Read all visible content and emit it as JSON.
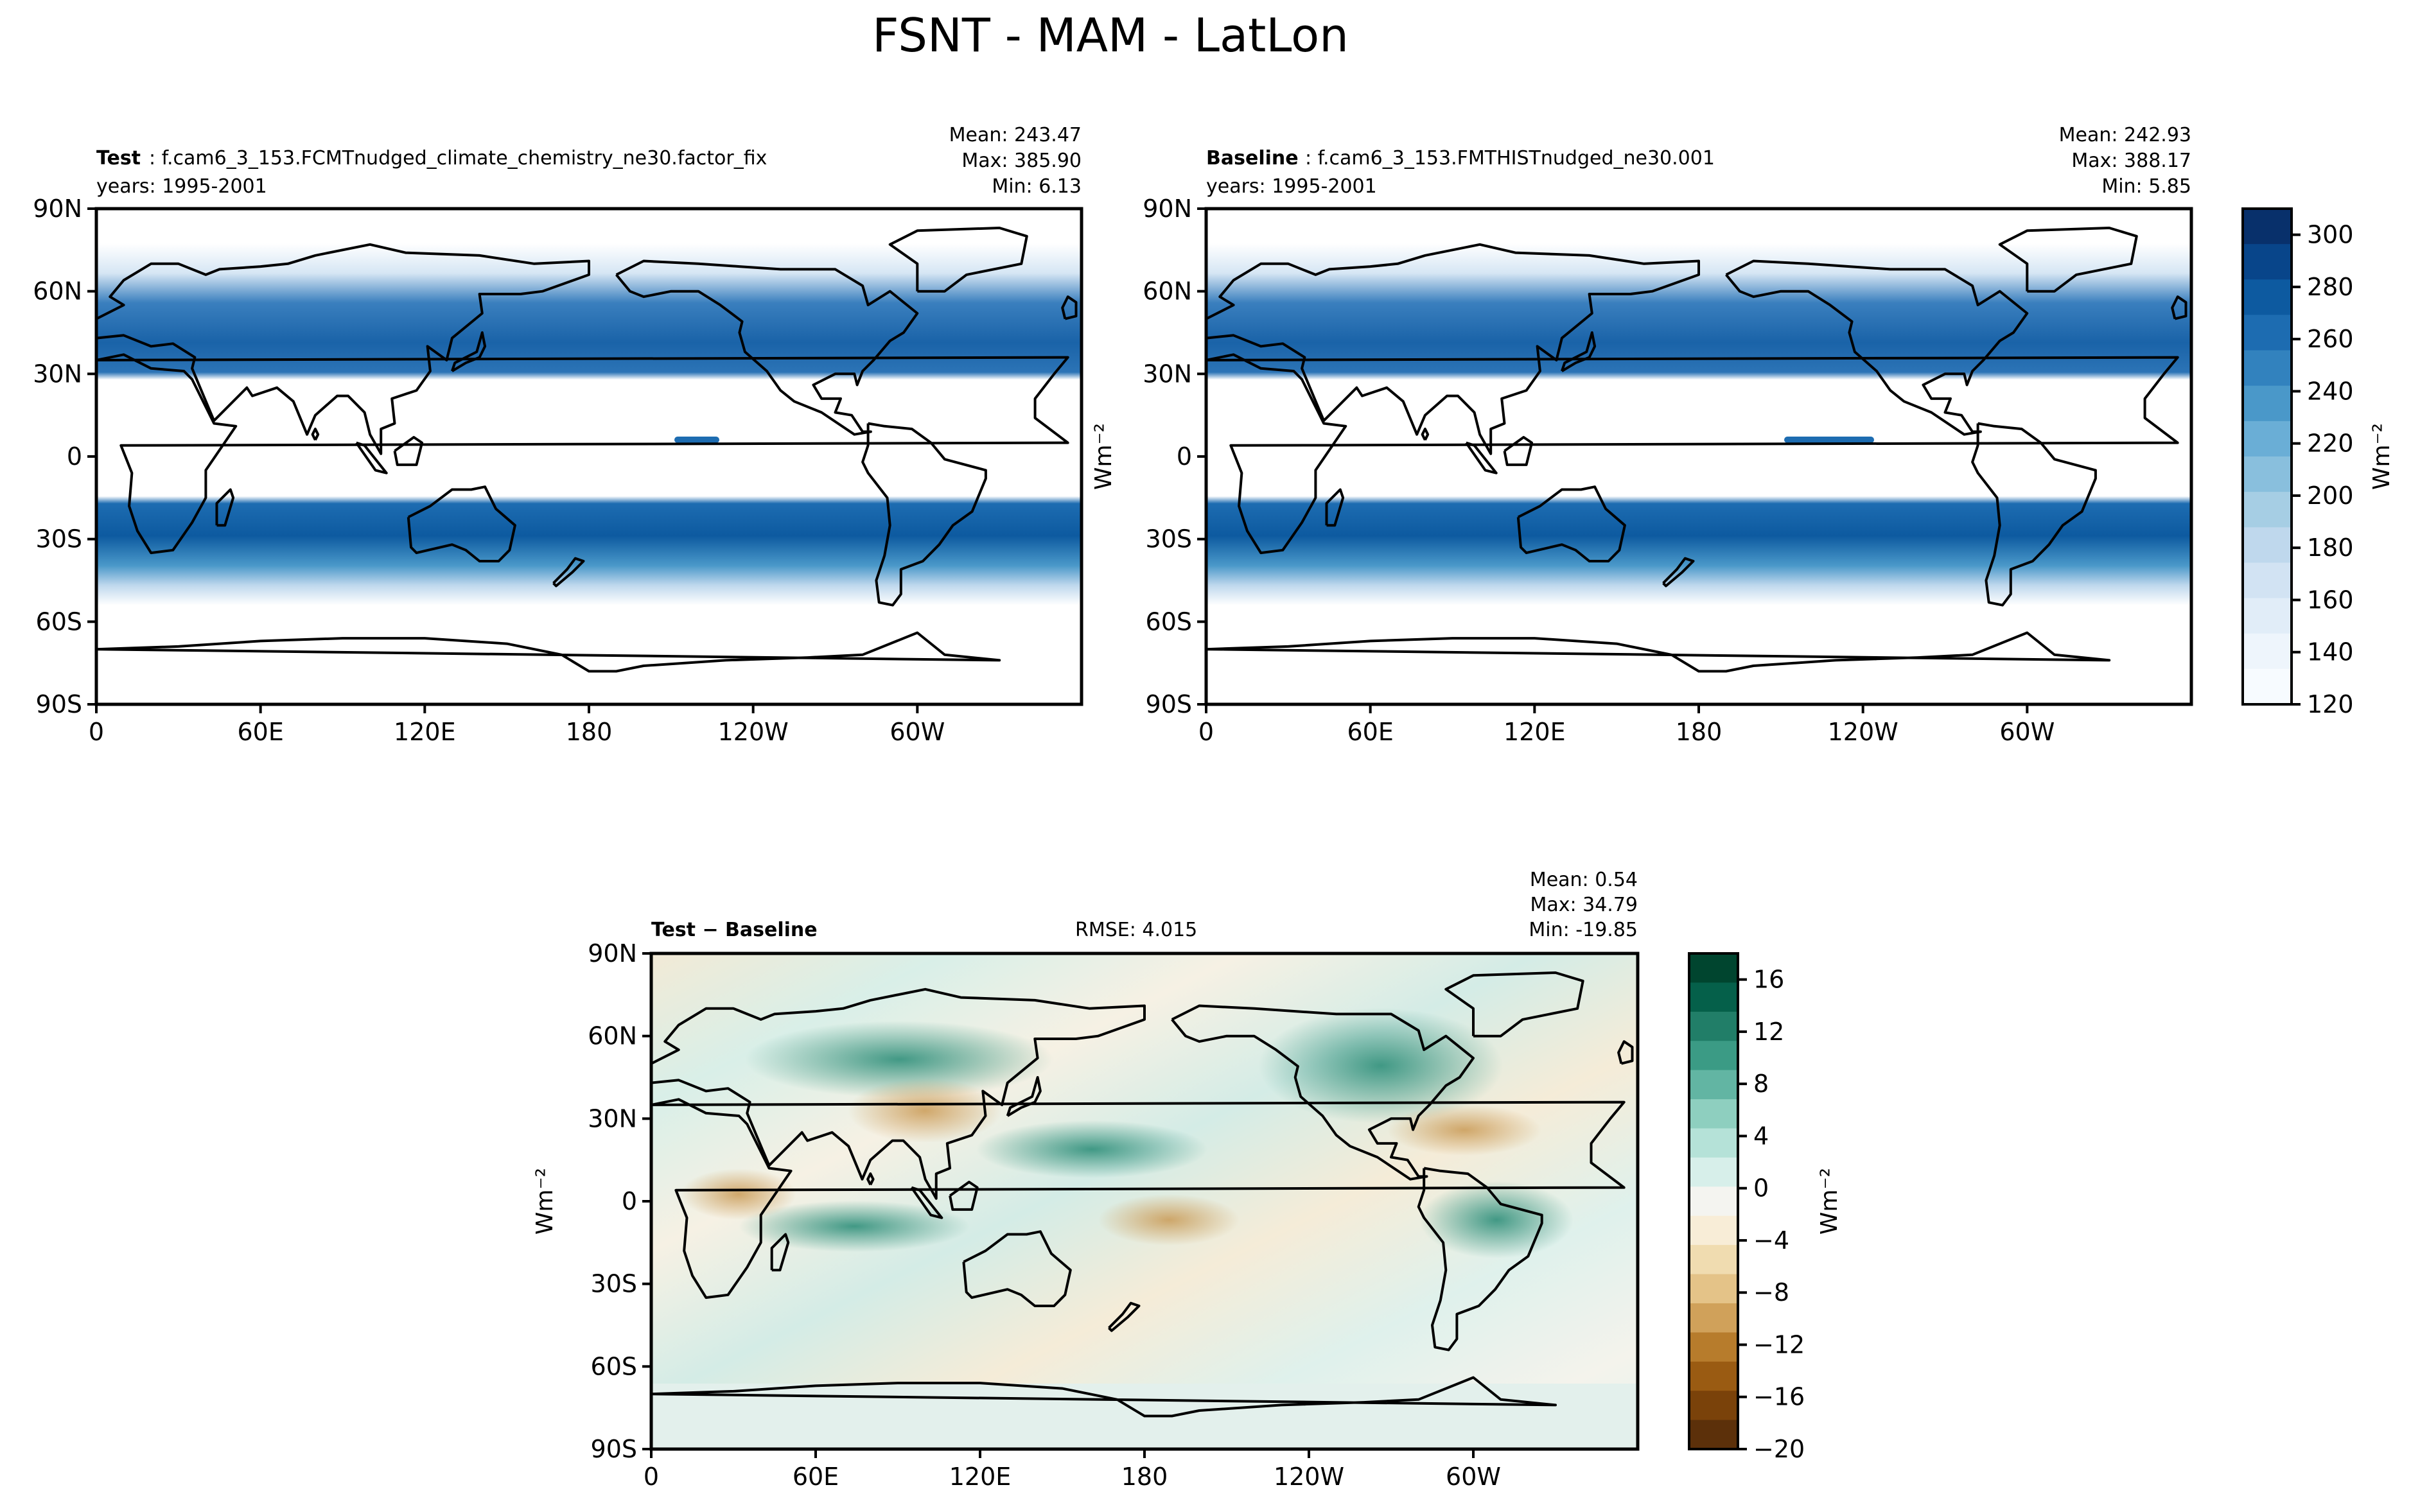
{
  "figure": {
    "title": "FSNT - MAM - LatLon"
  },
  "panels": [
    {
      "id": "test",
      "label_bold": "Test",
      "label_rest": ": f.cam6_3_153.FCMTnudged_climate_chemistry_ne30.factor_fix",
      "years": "years: 1995-2001",
      "stats": {
        "mean": "Mean: 243.47",
        "max": "Max: 385.90",
        "min": "Min:  6.13"
      }
    },
    {
      "id": "baseline",
      "label_bold": "Baseline",
      "label_rest": ": f.cam6_3_153.FMTHISTnudged_ne30.001",
      "years": "years: 1995-2001",
      "stats": {
        "mean": "Mean: 242.93",
        "max": "Max: 388.17",
        "min": "Min:  5.85"
      }
    },
    {
      "id": "diff",
      "label_bold": "Test − Baseline",
      "rmse": "RMSE: 4.015",
      "stats": {
        "mean": "Mean:  0.54",
        "max": "Max: 34.79",
        "min": "Min: -19.85"
      }
    }
  ],
  "axes": {
    "x_ticks": [
      "0",
      "60E",
      "120E",
      "180",
      "120W",
      "60W"
    ],
    "y_ticks": [
      "90N",
      "60N",
      "30N",
      "0",
      "30S",
      "60S",
      "90S"
    ]
  },
  "colorbars": {
    "main": {
      "label": "Wm⁻²",
      "ticks": [
        "300",
        "280",
        "260",
        "240",
        "220",
        "200",
        "180",
        "160",
        "140",
        "120"
      ],
      "colors": [
        "#08306b",
        "#08458a",
        "#0d5aa0",
        "#1d6cb1",
        "#3282be",
        "#4a98c9",
        "#6aaed6",
        "#89bfdd",
        "#a6cee4",
        "#bfd8ed",
        "#d2e3f3",
        "#e1edf8",
        "#eef5fc",
        "#f7fbff"
      ]
    },
    "diff": {
      "label": "Wm⁻²",
      "ticks": [
        "16",
        "12",
        "8",
        "4",
        "0",
        "−4",
        "−8",
        "−12",
        "−16",
        "−20"
      ],
      "colors": [
        "#00452f",
        "#05604a",
        "#217e68",
        "#3b9b85",
        "#62b5a3",
        "#8ecfbf",
        "#b5e2d8",
        "#d7efea",
        "#f4f4f0",
        "#f8edd7",
        "#f0dcb0",
        "#e4c388",
        "#d0a15a",
        "#b77c2c",
        "#9a5b12",
        "#7a420a",
        "#5c300a"
      ],
      "diff_ylabel": "Wm⁻²"
    }
  },
  "chart_data": [
    {
      "type": "heatmap",
      "title": "Test: f.cam6_3_153.FCMTnudged_climate_chemistry_ne30.factor_fix",
      "xlabel": "",
      "ylabel": "",
      "x_range": [
        0,
        360
      ],
      "y_range": [
        -90,
        90
      ],
      "color_range": [
        120,
        310
      ],
      "x_ticks": [
        "0",
        "60E",
        "120E",
        "180",
        "120W",
        "60W"
      ],
      "y_ticks": [
        "90N",
        "60N",
        "30N",
        "0",
        "30S",
        "60S",
        "90S"
      ],
      "stats": {
        "mean": 243.47,
        "max": 385.9,
        "min": 6.13
      },
      "years": "1995-2001"
    },
    {
      "type": "heatmap",
      "title": "Baseline: f.cam6_3_153.FMTHISTnudged_ne30.001",
      "xlabel": "",
      "ylabel": "Wm-2",
      "x_range": [
        0,
        360
      ],
      "y_range": [
        -90,
        90
      ],
      "color_range": [
        120,
        310
      ],
      "x_ticks": [
        "0",
        "60E",
        "120E",
        "180",
        "120W",
        "60W"
      ],
      "y_ticks": [
        "90N",
        "60N",
        "30N",
        "0",
        "30S",
        "60S",
        "90S"
      ],
      "stats": {
        "mean": 242.93,
        "max": 388.17,
        "min": 5.85
      },
      "years": "1995-2001"
    },
    {
      "type": "heatmap",
      "title": "Test − Baseline",
      "xlabel": "",
      "ylabel": "Wm-2",
      "x_range": [
        0,
        360
      ],
      "y_range": [
        -90,
        90
      ],
      "color_range": [
        -20,
        18
      ],
      "x_ticks": [
        "0",
        "60E",
        "120E",
        "180",
        "120W",
        "60W"
      ],
      "y_ticks": [
        "90N",
        "60N",
        "30N",
        "0",
        "30S",
        "60S",
        "90S"
      ],
      "stats": {
        "mean": 0.54,
        "max": 34.79,
        "min": -19.85,
        "rmse": 4.015
      }
    }
  ]
}
